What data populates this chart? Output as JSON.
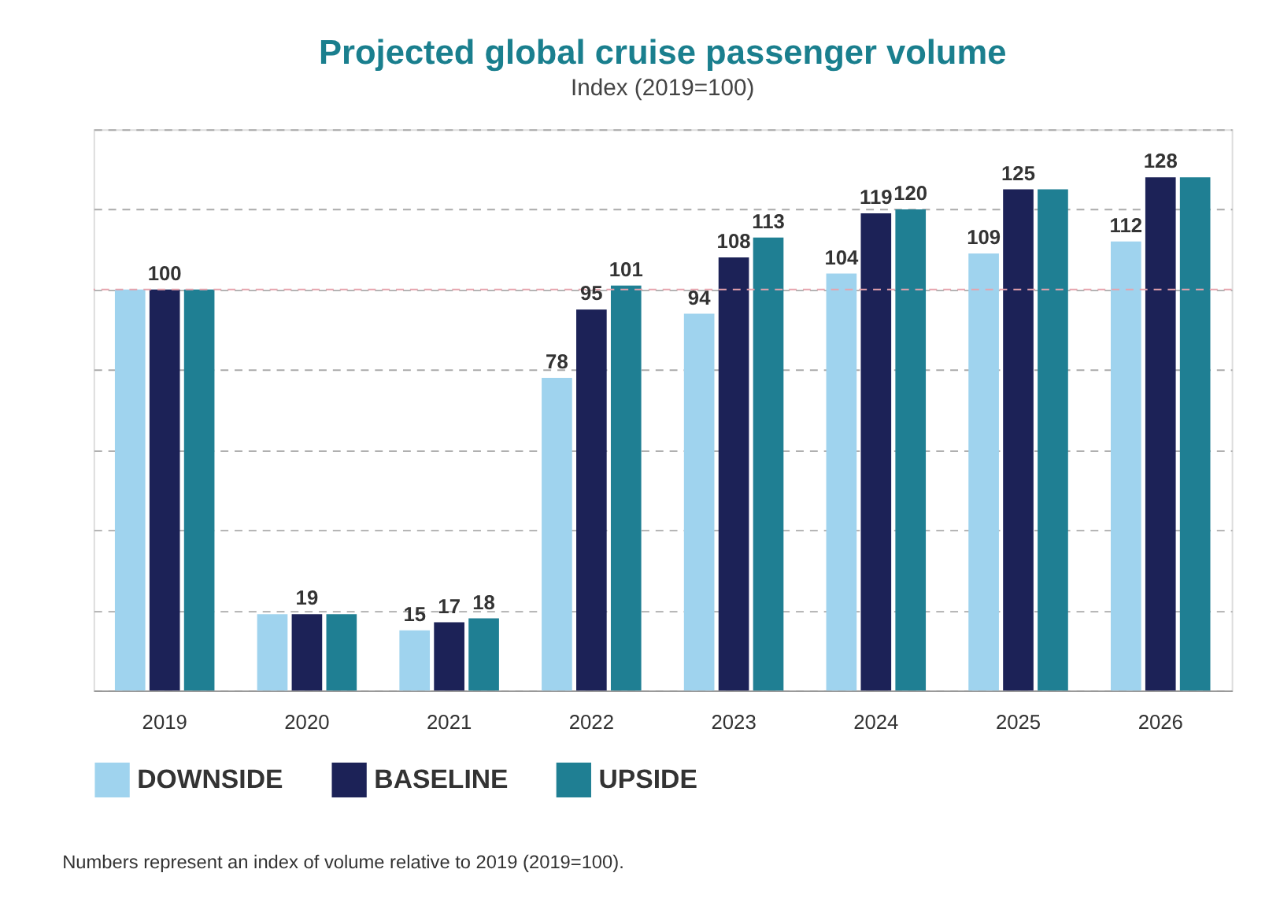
{
  "chart_data": {
    "type": "bar",
    "title": "Projected global cruise passenger volume",
    "subtitle": "Index (2019=100)",
    "categories": [
      "2019",
      "2020",
      "2021",
      "2022",
      "2023",
      "2024",
      "2025",
      "2026"
    ],
    "series": [
      {
        "name": "DOWNSIDE",
        "color": "#9fd3ee",
        "values": [
          100,
          19,
          15,
          78,
          94,
          104,
          109,
          112
        ],
        "value_labels": [
          null,
          null,
          "15",
          "78",
          "94",
          "104",
          "109",
          "112"
        ]
      },
      {
        "name": "BASELINE",
        "color": "#1c2257",
        "values": [
          100,
          19,
          17,
          95,
          108,
          119,
          125,
          128
        ],
        "value_labels": [
          "100",
          "19",
          "17",
          "95",
          "108",
          "119",
          "125",
          "128"
        ]
      },
      {
        "name": "UPSIDE",
        "color": "#1f7f93",
        "values": [
          100,
          19,
          18,
          101,
          113,
          120,
          125,
          128
        ],
        "value_labels": [
          null,
          null,
          "18",
          "101",
          "113",
          "120",
          null,
          null
        ]
      }
    ],
    "ylim": [
      0,
      140
    ],
    "yticks": [
      {
        "value": 0,
        "label": null
      },
      {
        "value": 20,
        "label": null
      },
      {
        "value": 40,
        "label": null
      },
      {
        "value": 60,
        "label": null
      },
      {
        "value": 80,
        "label": null
      },
      {
        "value": 100,
        "label": null
      },
      {
        "value": 120,
        "label": null
      },
      {
        "value": 140,
        "label": null
      }
    ],
    "grid": "y",
    "legend": "bottom",
    "tick_labels": "x",
    "ref_lines": [
      {
        "axis": "y",
        "value": 100,
        "color": "#e6a3ad",
        "line_style": "dashed"
      }
    ],
    "annotations": [
      "Numbers represent an index of volume relative to 2019 (2019=100)."
    ]
  }
}
